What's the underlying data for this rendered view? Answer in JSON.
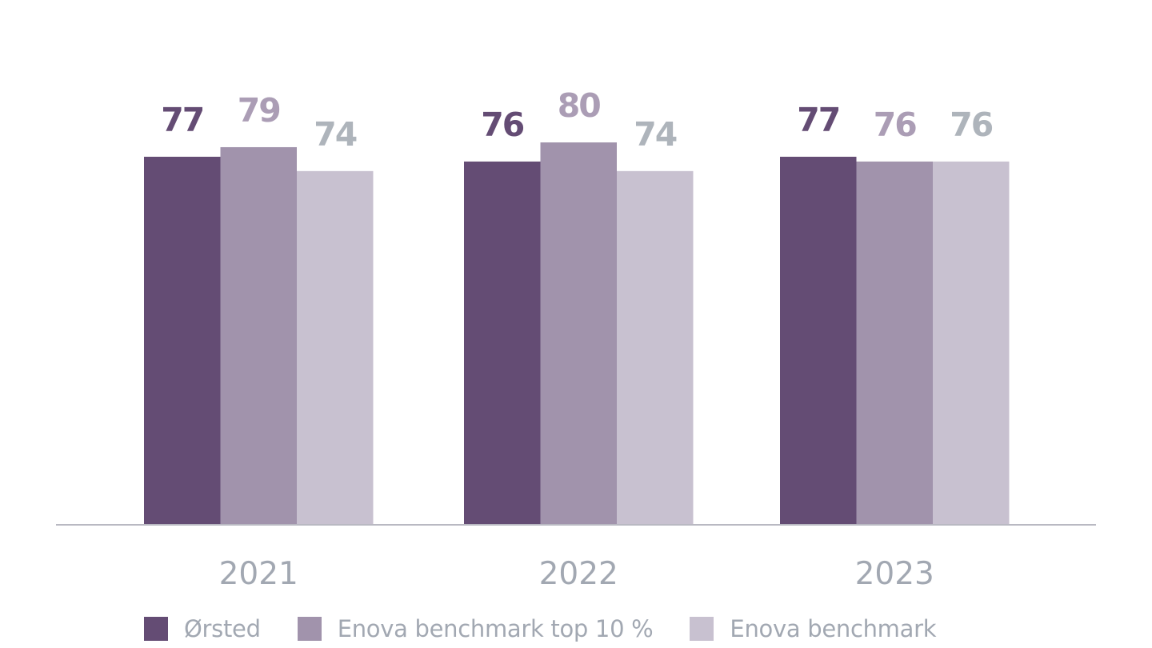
{
  "chart_data": {
    "type": "bar",
    "categories": [
      "2021",
      "2022",
      "2023"
    ],
    "series": [
      {
        "name": "Ørsted",
        "values": [
          77,
          76,
          77
        ],
        "color": "#644c74",
        "label_color": "#644c74"
      },
      {
        "name": "Enova benchmark top 10 %",
        "values": [
          79,
          80,
          76
        ],
        "color": "#a193ac",
        "label_color": "#ab9db5"
      },
      {
        "name": "Enova benchmark",
        "values": [
          74,
          74,
          76
        ],
        "color": "#c8c1d0",
        "label_color": "#aeb4bb"
      }
    ],
    "ylim": [
      0,
      80
    ],
    "grid": false,
    "legend_position": "bottom",
    "axis_color": "#b9b9c2",
    "tick_label_color": "#a2a8b2"
  }
}
